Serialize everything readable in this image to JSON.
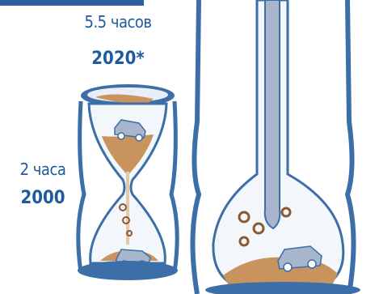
{
  "labels": {
    "hours_2020": "5.5 часов",
    "year_2020": "2020*",
    "hours_2000": "2 часа",
    "year_2000": "2000"
  },
  "colors": {
    "glass_outline": "#3c6ea8",
    "glass_fill": "#e9eff6",
    "sand": "#c9935d",
    "sand_dark": "#8a5a34",
    "car": "#a8b6cb",
    "text": "#1f5a9c"
  }
}
